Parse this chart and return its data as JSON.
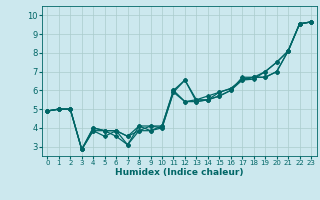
{
  "title": "",
  "xlabel": "Humidex (Indice chaleur)",
  "ylabel": "",
  "xlim": [
    -0.5,
    23.5
  ],
  "ylim": [
    2.5,
    10.5
  ],
  "xticks": [
    0,
    1,
    2,
    3,
    4,
    5,
    6,
    7,
    8,
    9,
    10,
    11,
    12,
    13,
    14,
    15,
    16,
    17,
    18,
    19,
    20,
    21,
    22,
    23
  ],
  "yticks": [
    3,
    4,
    5,
    6,
    7,
    8,
    9,
    10
  ],
  "bg_color": "#cce8ee",
  "grid_color": "#aacccc",
  "line_color": "#006666",
  "marker": "D",
  "marker_size": 2.0,
  "linewidth": 0.9,
  "series": [
    {
      "x": [
        0,
        1,
        2,
        3,
        4,
        5,
        6,
        7,
        8,
        9,
        10,
        11,
        12,
        13,
        14,
        15,
        16,
        17,
        18,
        19,
        20,
        21,
        22,
        23
      ],
      "y": [
        4.9,
        5.0,
        5.0,
        2.85,
        3.85,
        3.55,
        3.85,
        3.1,
        4.1,
        3.85,
        4.0,
        5.9,
        6.55,
        5.4,
        5.5,
        5.7,
        6.0,
        6.55,
        6.6,
        7.0,
        7.5,
        8.1,
        9.55,
        9.65
      ]
    },
    {
      "x": [
        0,
        1,
        2,
        3,
        4,
        5,
        6,
        7,
        8,
        9,
        10,
        11,
        12,
        13,
        14,
        15,
        16,
        17,
        18,
        19,
        20,
        21,
        22,
        23
      ],
      "y": [
        4.9,
        5.0,
        5.0,
        2.85,
        4.0,
        3.85,
        3.85,
        3.55,
        3.85,
        4.1,
        4.1,
        6.0,
        5.4,
        5.5,
        5.7,
        5.9,
        6.1,
        6.6,
        6.7,
        6.7,
        7.0,
        8.1,
        9.55,
        9.65
      ]
    },
    {
      "x": [
        0,
        1,
        2,
        3,
        4,
        5,
        6,
        7,
        8,
        9,
        10,
        11,
        12,
        13,
        14,
        15,
        16,
        17,
        18,
        19,
        20,
        21,
        22,
        23
      ],
      "y": [
        4.9,
        5.0,
        5.0,
        2.85,
        3.85,
        3.85,
        3.85,
        3.55,
        4.1,
        4.1,
        4.0,
        5.9,
        5.4,
        5.4,
        5.5,
        5.7,
        6.0,
        6.7,
        6.7,
        6.7,
        7.0,
        8.1,
        9.55,
        9.65
      ]
    },
    {
      "x": [
        0,
        1,
        2,
        3,
        4,
        5,
        6,
        7,
        8,
        9,
        10,
        11,
        12,
        13,
        14,
        15,
        16,
        17,
        18,
        19,
        20,
        21,
        22,
        23
      ],
      "y": [
        4.9,
        5.0,
        5.0,
        2.85,
        4.0,
        3.85,
        3.55,
        3.1,
        3.85,
        3.85,
        4.1,
        6.0,
        6.55,
        5.5,
        5.5,
        5.9,
        6.1,
        6.55,
        6.7,
        7.0,
        7.5,
        8.1,
        9.55,
        9.65
      ]
    }
  ]
}
